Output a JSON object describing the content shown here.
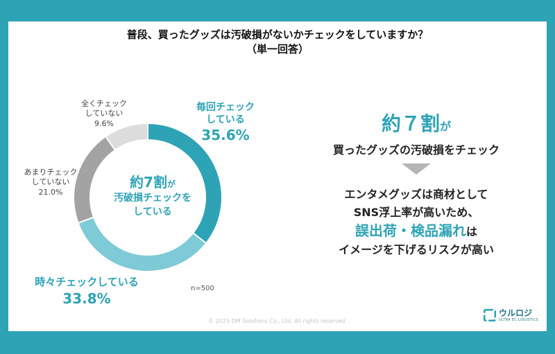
{
  "title_line1": "普段、買ったグッズは汚破損がないかチェックをしていますか？",
  "title_line2": "（単一回答）",
  "chart_data": {
    "type": "pie",
    "donut": true,
    "categories": [
      "毎回チェックしている",
      "時々チェックしている",
      "あまりチェックしていない",
      "全くチェックしていない"
    ],
    "values": [
      35.6,
      33.8,
      21.0,
      9.6
    ],
    "unit": "%",
    "colors": [
      "#2ea3b5",
      "#7ecad6",
      "#a3a3a3",
      "#dcdcdc"
    ],
    "labels": [
      {
        "line1": "毎回チェック",
        "line2": "している",
        "pct": "35.6%"
      },
      {
        "line1": "時々チェックしている",
        "line2": "",
        "pct": "33.8%"
      },
      {
        "line1": "あまりチェック",
        "line2": "していない",
        "pct": "21.0%"
      },
      {
        "line1": "全くチェック",
        "line2": "していない",
        "pct": "9.6%"
      }
    ],
    "sample": "n=500"
  },
  "center": {
    "big": "約7割",
    "ga": "が",
    "line2": "汚破損チェックを",
    "line3": "している"
  },
  "right": {
    "headline": "約７割",
    "headline_ga": "が",
    "subline": "買ったグッズの汚破損をチェック",
    "body1": "エンタメグッズは商材として",
    "body2": "SNS浮上率が高いため、",
    "accent": "誤出荷・検品漏れ",
    "accent_suffix": "は",
    "body3": "イメージを下げるリスクが高い"
  },
  "footer": "© 2025 DM Solutions Co., Ltd. All rights reserved.",
  "logo": {
    "name": "ウルロジ",
    "sub": "ULTRA EC LOGISTICS"
  }
}
